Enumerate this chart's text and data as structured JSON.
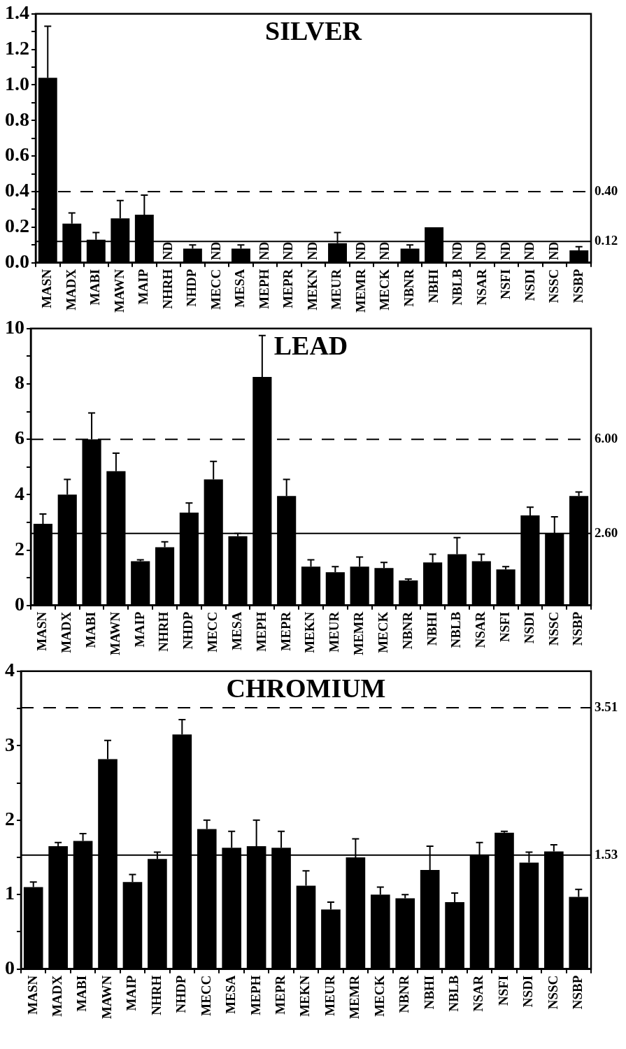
{
  "chart_data": [
    {
      "type": "bar",
      "title": "SILVER",
      "categories": [
        "MASN",
        "MADX",
        "MABI",
        "MAWN",
        "MAIP",
        "NHRH",
        "NHDP",
        "MECC",
        "MESA",
        "MEPH",
        "MEPR",
        "MEKN",
        "MEUR",
        "MEMR",
        "MECK",
        "NBNR",
        "NBHI",
        "NBLB",
        "NSAR",
        "NSFI",
        "NSDI",
        "NSSC",
        "NSBP"
      ],
      "values": [
        1.04,
        0.22,
        0.13,
        0.25,
        0.27,
        null,
        0.08,
        null,
        0.08,
        null,
        null,
        null,
        0.11,
        null,
        null,
        0.08,
        0.2,
        null,
        null,
        null,
        null,
        null,
        0.07
      ],
      "errors": [
        [
          1.04,
          1.33
        ],
        [
          0.22,
          0.28
        ],
        [
          0.13,
          0.17
        ],
        [
          0.25,
          0.35
        ],
        [
          0.27,
          0.38
        ],
        null,
        [
          0.08,
          0.1
        ],
        null,
        [
          0.08,
          0.1
        ],
        null,
        null,
        null,
        [
          0.11,
          0.17
        ],
        null,
        null,
        [
          0.08,
          0.1
        ],
        null,
        null,
        null,
        null,
        null,
        null,
        [
          0.07,
          0.09
        ]
      ],
      "value_labels": [
        null,
        null,
        null,
        null,
        null,
        "ND",
        null,
        "ND",
        null,
        "ND",
        "ND",
        "ND",
        null,
        "ND",
        "ND",
        null,
        null,
        "ND",
        "ND",
        "ND",
        "ND",
        "ND",
        null
      ],
      "color": "#000000",
      "ylim": [
        0,
        1.4
      ],
      "yticks": [
        {
          "value": 0,
          "label": "0.0"
        },
        {
          "value": 0.1,
          "label": null
        },
        {
          "value": 0.2,
          "label": "0.2"
        },
        {
          "value": 0.3,
          "label": null
        },
        {
          "value": 0.4,
          "label": "0.4"
        },
        {
          "value": 0.5,
          "label": null
        },
        {
          "value": 0.6,
          "label": "0.6"
        },
        {
          "value": 0.7,
          "label": null
        },
        {
          "value": 0.8,
          "label": "0.8"
        },
        {
          "value": 0.9,
          "label": null
        },
        {
          "value": 1.0,
          "label": "1.0"
        },
        {
          "value": 1.1,
          "label": null
        },
        {
          "value": 1.2,
          "label": "1.2"
        },
        {
          "value": 1.3,
          "label": null
        },
        {
          "value": 1.4,
          "label": "1.4"
        }
      ],
      "ref_lines": [
        {
          "axis": "y",
          "value": 0.4,
          "label": "0.40",
          "line_style": "dashed"
        },
        {
          "axis": "y",
          "value": 0.12,
          "label": "0.12",
          "line_style": "solid"
        }
      ],
      "grid": false,
      "legend": false
    },
    {
      "type": "bar",
      "title": "LEAD",
      "categories": [
        "MASN",
        "MADX",
        "MABI",
        "MAWN",
        "MAIP",
        "NHRH",
        "NHDP",
        "MECC",
        "MESA",
        "MEPH",
        "MEPR",
        "MEKN",
        "MEUR",
        "MEMR",
        "MECK",
        "NBNR",
        "NBHI",
        "NBLB",
        "NSAR",
        "NSFI",
        "NSDI",
        "NSSC",
        "NSBP"
      ],
      "values": [
        2.95,
        4.0,
        6.0,
        4.85,
        1.6,
        2.1,
        3.35,
        4.55,
        2.5,
        8.25,
        3.95,
        1.4,
        1.2,
        1.4,
        1.35,
        0.9,
        1.55,
        1.85,
        1.6,
        1.3,
        3.25,
        2.6,
        3.95
      ],
      "errors": [
        [
          2.95,
          3.3
        ],
        [
          4.0,
          4.55
        ],
        [
          6.0,
          6.95
        ],
        [
          4.85,
          5.5
        ],
        [
          1.6,
          1.65
        ],
        [
          2.1,
          2.3
        ],
        [
          3.35,
          3.7
        ],
        [
          4.55,
          5.2
        ],
        [
          2.5,
          2.6
        ],
        [
          8.25,
          9.75
        ],
        [
          3.95,
          4.55
        ],
        [
          1.4,
          1.65
        ],
        [
          1.2,
          1.4
        ],
        [
          1.4,
          1.75
        ],
        [
          1.35,
          1.55
        ],
        [
          0.9,
          0.95
        ],
        [
          1.55,
          1.85
        ],
        [
          1.85,
          2.45
        ],
        [
          1.6,
          1.85
        ],
        [
          1.3,
          1.4
        ],
        [
          3.25,
          3.55
        ],
        [
          2.6,
          3.2
        ],
        [
          3.95,
          4.1
        ]
      ],
      "color": "#000000",
      "ylim": [
        0,
        10
      ],
      "yticks": [
        0,
        {
          "value": 1,
          "label": null
        },
        2,
        {
          "value": 3,
          "label": null
        },
        4,
        {
          "value": 5,
          "label": null
        },
        6,
        {
          "value": 7,
          "label": null
        },
        8,
        {
          "value": 9,
          "label": null
        },
        10
      ],
      "ref_lines": [
        {
          "axis": "y",
          "value": 6.0,
          "label": "6.00",
          "line_style": "dashed"
        },
        {
          "axis": "y",
          "value": 2.6,
          "label": "2.60",
          "line_style": "solid"
        }
      ],
      "grid": false,
      "legend": false
    },
    {
      "type": "bar",
      "title": "CHROMIUM",
      "categories": [
        "MASN",
        "MADX",
        "MABI",
        "MAWN",
        "MAIP",
        "NHRH",
        "NHDP",
        "MECC",
        "MESA",
        "MEPH",
        "MEPR",
        "MEKN",
        "MEUR",
        "MEMR",
        "MECK",
        "NBNR",
        "NBHI",
        "NBLB",
        "NSAR",
        "NSFI",
        "NSDI",
        "NSSC",
        "NSBP"
      ],
      "values": [
        1.1,
        1.65,
        1.72,
        2.82,
        1.17,
        1.48,
        3.15,
        1.88,
        1.63,
        1.65,
        1.63,
        1.12,
        0.8,
        1.5,
        1.0,
        0.95,
        1.33,
        0.9,
        1.53,
        1.83,
        1.43,
        1.58,
        0.97
      ],
      "errors": [
        [
          1.1,
          1.17
        ],
        [
          1.65,
          1.7
        ],
        [
          1.72,
          1.82
        ],
        [
          2.82,
          3.07
        ],
        [
          1.17,
          1.27
        ],
        [
          1.48,
          1.57
        ],
        [
          3.15,
          3.35
        ],
        [
          1.88,
          2.0
        ],
        [
          1.63,
          1.85
        ],
        [
          1.65,
          2.0
        ],
        [
          1.63,
          1.85
        ],
        [
          1.12,
          1.32
        ],
        [
          0.8,
          0.9
        ],
        [
          1.5,
          1.75
        ],
        [
          1.0,
          1.1
        ],
        [
          0.95,
          1.0
        ],
        [
          1.33,
          1.65
        ],
        [
          0.9,
          1.02
        ],
        [
          1.53,
          1.7
        ],
        [
          1.83,
          1.85
        ],
        [
          1.43,
          1.57
        ],
        [
          1.58,
          1.67
        ],
        [
          0.97,
          1.07
        ]
      ],
      "color": "#000000",
      "ylim": [
        0,
        4
      ],
      "yticks": [
        0,
        {
          "value": 0.5,
          "label": null
        },
        1,
        {
          "value": 1.5,
          "label": null
        },
        2,
        {
          "value": 2.5,
          "label": null
        },
        3,
        {
          "value": 3.5,
          "label": null
        },
        4
      ],
      "ref_lines": [
        {
          "axis": "y",
          "value": 3.51,
          "label": "3.51",
          "line_style": "dashed"
        },
        {
          "axis": "y",
          "value": 1.53,
          "label": "1.53",
          "line_style": "solid"
        }
      ],
      "grid": false,
      "legend": false
    }
  ]
}
